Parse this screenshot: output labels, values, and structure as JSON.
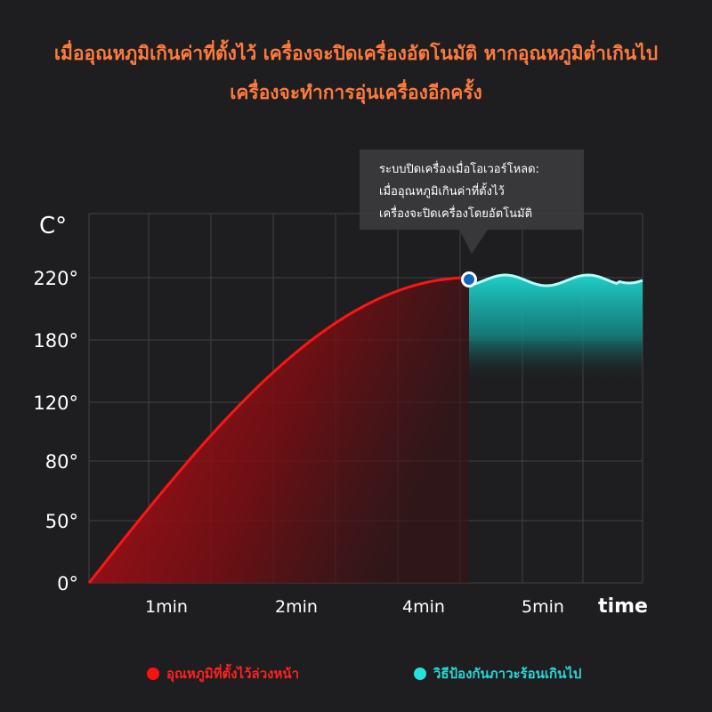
{
  "header": {
    "line1": "เมื่ออุณหภูมิเกินค่าที่ตั้งไว้ เครื่องจะปิดเครื่องอัตโนมัติ หากอุณหภูมิต่ำเกินไป",
    "line2": "เครื่องจะทำการอุ่นเครื่องอีกครั้ง"
  },
  "tooltip": {
    "line1": "ระบบปิดเครื่องเมื่อโอเวอร์โหลด:",
    "line2": "เมื่ออุณหภูมิเกินค่าที่ตั้งไว้",
    "line3": "เครื่องจะปิดเครื่องโดยอัตโนมัติ"
  },
  "legend": {
    "red_label": "อุณหภูมิที่ตั้งไว้ล่วงหน้า",
    "teal_label": "วิธีป้องกันภาวะร้อนเกินไป"
  },
  "colors": {
    "heating": "#ff1414",
    "protection": "#27e0dc",
    "headline": "#ff7a3d",
    "marker": "#1565c0"
  },
  "chart_data": {
    "type": "area",
    "ylabel": "C°",
    "xlabel": "time",
    "y_ticks": [
      "0°",
      "50°",
      "80°",
      "120°",
      "180°",
      "220°"
    ],
    "x_ticks": [
      "1min",
      "2min",
      "4min",
      "5min"
    ],
    "grid": true,
    "series": [
      {
        "name": "อุณหภูมิที่ตั้งไว้ล่วงหน้า",
        "points": [
          [
            0,
            0
          ],
          [
            1,
            80
          ],
          [
            2,
            140
          ],
          [
            3,
            190
          ],
          [
            4,
            214
          ],
          [
            4.5,
            220
          ]
        ]
      },
      {
        "name": "วิธีป้องกันภาวะร้อนเกินไป",
        "points": [
          [
            4.5,
            220
          ],
          [
            4.7,
            224
          ],
          [
            5,
            214
          ],
          [
            5.3,
            220
          ],
          [
            5.6,
            214
          ],
          [
            6,
            222
          ],
          [
            6.3,
            220
          ]
        ]
      }
    ]
  }
}
